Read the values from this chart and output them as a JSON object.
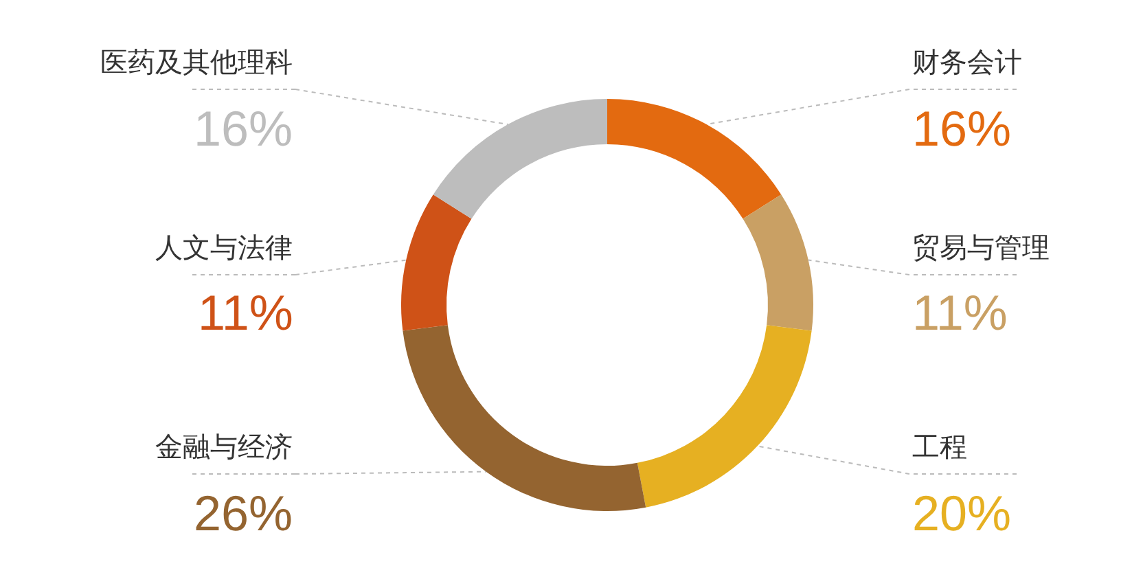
{
  "chart_data": {
    "type": "donut",
    "categories": [
      "财务会计",
      "贸易与管理",
      "工程",
      "金融与经济",
      "人文与法律",
      "医药及其他理科"
    ],
    "values": [
      16,
      11,
      20,
      26,
      11,
      16
    ],
    "value_labels": [
      "16%",
      "11%",
      "20%",
      "26%",
      "11%",
      "16%"
    ],
    "colors": [
      "#e36a10",
      "#c9a064",
      "#e6b022",
      "#946430",
      "#cf5217",
      "#bdbdbd"
    ],
    "legend": false
  }
}
